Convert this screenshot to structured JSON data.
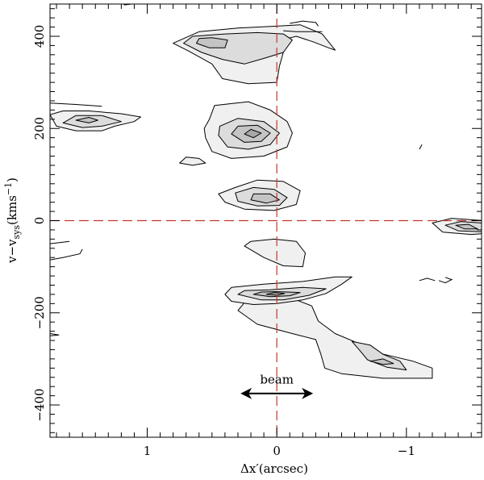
{
  "chart_data": {
    "type": "contour",
    "xlabel": "Δx′(arcsec)",
    "ylabel_parts": {
      "base": "v−v",
      "sub": "sys",
      "units": "(kms",
      "sup": "−1",
      "close": ")"
    },
    "xlim": [
      1.75,
      -1.58
    ],
    "ylim": [
      470,
      -470
    ],
    "x_ticks": [
      1,
      0,
      -1
    ],
    "x_tick_labels": [
      "1",
      "0",
      "−1"
    ],
    "y_ticks": [
      -400,
      -200,
      0,
      200,
      400
    ],
    "y_tick_labels": [
      "−400",
      "−200",
      "0",
      "200",
      "400"
    ],
    "reference_lines": {
      "x": 0,
      "y": 0,
      "color": "#c0392b",
      "style": "dashed"
    },
    "beam": {
      "label": "beam",
      "x_from": 0.28,
      "x_to": -0.28,
      "y": -375
    },
    "contour_levels": 4,
    "fill_colors": [
      "#f0f0f0",
      "#dcdcdc",
      "#c4c4c4",
      "#a8a8a8"
    ],
    "clumps": [
      {
        "name": "stream-upper",
        "level": 1,
        "points": [
          [
            0.3,
            -195
          ],
          [
            0.15,
            -225
          ],
          [
            -0.12,
            -245
          ],
          [
            -0.3,
            -258
          ],
          [
            -0.34,
            -290
          ],
          [
            -0.37,
            -320
          ],
          [
            -0.5,
            -332
          ],
          [
            -0.82,
            -342
          ],
          [
            -1.2,
            -342
          ],
          [
            -1.2,
            -320
          ],
          [
            -1.05,
            -305
          ],
          [
            -0.75,
            -285
          ],
          [
            -0.62,
            -265
          ],
          [
            -0.45,
            -245
          ],
          [
            -0.32,
            -218
          ],
          [
            -0.27,
            -185
          ],
          [
            -0.15,
            -172
          ],
          [
            0.05,
            -172
          ],
          [
            0.25,
            -178
          ]
        ]
      },
      {
        "name": "stream-upper",
        "level": 2,
        "points": [
          [
            -0.58,
            -262
          ],
          [
            -0.65,
            -285
          ],
          [
            -0.7,
            -302
          ],
          [
            -0.85,
            -318
          ],
          [
            -1.0,
            -324
          ],
          [
            -0.95,
            -305
          ],
          [
            -0.82,
            -290
          ],
          [
            -0.72,
            -270
          ]
        ]
      },
      {
        "name": "stream-upper",
        "level": 3,
        "points": [
          [
            -0.72,
            -305
          ],
          [
            -0.82,
            -312
          ],
          [
            -0.9,
            -310
          ],
          [
            -0.82,
            -300
          ]
        ]
      },
      {
        "name": "clump-a",
        "level": 1,
        "points": [
          [
            0.4,
            -160
          ],
          [
            0.35,
            -175
          ],
          [
            0.18,
            -182
          ],
          [
            0.0,
            -180
          ],
          [
            -0.2,
            -172
          ],
          [
            -0.38,
            -158
          ],
          [
            -0.5,
            -138
          ],
          [
            -0.58,
            -122
          ],
          [
            -0.45,
            -122
          ],
          [
            -0.2,
            -132
          ],
          [
            0.1,
            -138
          ],
          [
            0.35,
            -145
          ]
        ]
      },
      {
        "name": "clump-a",
        "level": 2,
        "points": [
          [
            0.3,
            -160
          ],
          [
            0.12,
            -172
          ],
          [
            -0.05,
            -172
          ],
          [
            -0.25,
            -162
          ],
          [
            -0.38,
            -148
          ],
          [
            -0.2,
            -145
          ],
          [
            0.05,
            -150
          ],
          [
            0.25,
            -152
          ]
        ]
      },
      {
        "name": "clump-a",
        "level": 3,
        "points": [
          [
            0.18,
            -160
          ],
          [
            0.05,
            -165
          ],
          [
            -0.1,
            -163
          ],
          [
            -0.18,
            -156
          ],
          [
            0.0,
            -154
          ],
          [
            0.12,
            -155
          ]
        ]
      },
      {
        "name": "clump-a",
        "level": 4,
        "points": [
          [
            0.08,
            -160
          ],
          [
            0.0,
            -162
          ],
          [
            -0.06,
            -158
          ],
          [
            0.02,
            -156
          ]
        ]
      },
      {
        "name": "clump-b",
        "level": 1,
        "points": [
          [
            0.25,
            -55
          ],
          [
            0.1,
            -80
          ],
          [
            -0.05,
            -98
          ],
          [
            -0.2,
            -100
          ],
          [
            -0.22,
            -70
          ],
          [
            -0.15,
            -45
          ],
          [
            0.02,
            -40
          ],
          [
            0.2,
            -45
          ]
        ]
      },
      {
        "name": "clump-c",
        "level": 1,
        "points": [
          [
            0.4,
            40
          ],
          [
            0.25,
            25
          ],
          [
            0.02,
            22
          ],
          [
            -0.15,
            35
          ],
          [
            -0.18,
            65
          ],
          [
            -0.05,
            85
          ],
          [
            0.15,
            88
          ],
          [
            0.32,
            72
          ],
          [
            0.45,
            58
          ]
        ]
      },
      {
        "name": "clump-c",
        "level": 2,
        "points": [
          [
            0.3,
            42
          ],
          [
            0.15,
            32
          ],
          [
            -0.02,
            33
          ],
          [
            -0.08,
            50
          ],
          [
            0.02,
            68
          ],
          [
            0.18,
            72
          ],
          [
            0.32,
            60
          ]
        ]
      },
      {
        "name": "clump-c",
        "level": 3,
        "points": [
          [
            0.2,
            45
          ],
          [
            0.08,
            38
          ],
          [
            -0.02,
            45
          ],
          [
            0.05,
            58
          ],
          [
            0.18,
            58
          ]
        ]
      },
      {
        "name": "clump-e",
        "level": 1,
        "points": [
          [
            0.55,
            180
          ],
          [
            0.5,
            150
          ],
          [
            0.35,
            135
          ],
          [
            0.1,
            140
          ],
          [
            -0.08,
            160
          ],
          [
            -0.12,
            190
          ],
          [
            -0.08,
            215
          ],
          [
            0.05,
            240
          ],
          [
            0.22,
            258
          ],
          [
            0.48,
            250
          ],
          [
            0.52,
            220
          ],
          [
            0.56,
            200
          ]
        ]
      },
      {
        "name": "clump-e",
        "level": 2,
        "points": [
          [
            0.45,
            185
          ],
          [
            0.38,
            160
          ],
          [
            0.22,
            155
          ],
          [
            0.05,
            165
          ],
          [
            -0.02,
            190
          ],
          [
            0.1,
            215
          ],
          [
            0.3,
            222
          ],
          [
            0.44,
            205
          ]
        ]
      },
      {
        "name": "clump-e",
        "level": 3,
        "points": [
          [
            0.35,
            188
          ],
          [
            0.25,
            170
          ],
          [
            0.12,
            172
          ],
          [
            0.05,
            190
          ],
          [
            0.15,
            207
          ],
          [
            0.3,
            205
          ]
        ]
      },
      {
        "name": "clump-e",
        "level": 4,
        "points": [
          [
            0.25,
            188
          ],
          [
            0.18,
            180
          ],
          [
            0.12,
            190
          ],
          [
            0.2,
            198
          ]
        ]
      },
      {
        "name": "clump-f",
        "level": 1,
        "points": [
          [
            0.8,
            385
          ],
          [
            0.68,
            368
          ],
          [
            0.5,
            340
          ],
          [
            0.42,
            308
          ],
          [
            0.22,
            297
          ],
          [
            0.0,
            300
          ],
          [
            -0.02,
            335
          ],
          [
            -0.08,
            395
          ],
          [
            -0.15,
            400
          ],
          [
            -0.28,
            388
          ],
          [
            -0.4,
            375
          ],
          [
            -0.45,
            370
          ],
          [
            -0.35,
            405
          ],
          [
            -0.18,
            425
          ],
          [
            0.0,
            422
          ],
          [
            0.3,
            418
          ],
          [
            0.6,
            410
          ]
        ]
      },
      {
        "name": "clump-f",
        "level": 2,
        "points": [
          [
            0.72,
            385
          ],
          [
            0.58,
            365
          ],
          [
            0.42,
            350
          ],
          [
            0.25,
            340
          ],
          [
            0.1,
            352
          ],
          [
            -0.05,
            365
          ],
          [
            -0.12,
            392
          ],
          [
            -0.05,
            405
          ],
          [
            0.15,
            408
          ],
          [
            0.4,
            405
          ],
          [
            0.65,
            400
          ]
        ]
      },
      {
        "name": "clump-f",
        "level": 3,
        "points": [
          [
            0.62,
            385
          ],
          [
            0.52,
            375
          ],
          [
            0.4,
            375
          ],
          [
            0.38,
            392
          ],
          [
            0.5,
            397
          ],
          [
            0.6,
            395
          ]
        ]
      },
      {
        "name": "clump-g",
        "level": 1,
        "points": [
          [
            1.7,
            205
          ],
          [
            1.55,
            195
          ],
          [
            1.35,
            195
          ],
          [
            1.25,
            205
          ],
          [
            1.1,
            215
          ],
          [
            1.05,
            225
          ],
          [
            1.2,
            232
          ],
          [
            1.45,
            238
          ],
          [
            1.65,
            238
          ],
          [
            1.75,
            230
          ]
        ]
      },
      {
        "name": "clump-g",
        "level": 2,
        "points": [
          [
            1.65,
            212
          ],
          [
            1.5,
            202
          ],
          [
            1.35,
            205
          ],
          [
            1.2,
            215
          ],
          [
            1.35,
            228
          ],
          [
            1.55,
            228
          ]
        ]
      },
      {
        "name": "clump-g",
        "level": 3,
        "points": [
          [
            1.55,
            218
          ],
          [
            1.45,
            212
          ],
          [
            1.38,
            218
          ],
          [
            1.45,
            224
          ]
        ]
      },
      {
        "name": "clump-h",
        "level": 1,
        "points": [
          [
            -1.2,
            -5
          ],
          [
            -1.28,
            -25
          ],
          [
            -1.5,
            -30
          ],
          [
            -1.6,
            -28
          ],
          [
            -1.6,
            0
          ],
          [
            -1.35,
            5
          ]
        ]
      },
      {
        "name": "clump-h",
        "level": 2,
        "points": [
          [
            -1.3,
            -10
          ],
          [
            -1.4,
            -22
          ],
          [
            -1.58,
            -24
          ],
          [
            -1.58,
            -5
          ],
          [
            -1.42,
            -2
          ]
        ]
      },
      {
        "name": "clump-h",
        "level": 3,
        "points": [
          [
            -1.38,
            -10
          ],
          [
            -1.45,
            -18
          ],
          [
            -1.55,
            -18
          ],
          [
            -1.48,
            -8
          ]
        ]
      },
      {
        "name": "clump-i",
        "level": 1,
        "points": [
          [
            0.75,
            125
          ],
          [
            0.65,
            120
          ],
          [
            0.55,
            125
          ],
          [
            0.6,
            135
          ],
          [
            0.7,
            138
          ]
        ]
      }
    ],
    "open_contours": [
      {
        "name": "edge-left-top",
        "points": [
          [
            1.75,
            -245
          ],
          [
            1.68,
            -248
          ],
          [
            1.75,
            -250
          ]
        ]
      },
      {
        "name": "edge-left-mid",
        "points": [
          [
            1.75,
            -85
          ],
          [
            1.65,
            -80
          ],
          [
            1.52,
            -72
          ],
          [
            1.5,
            -62
          ]
        ]
      },
      {
        "name": "edge-left-mid2",
        "points": [
          [
            1.75,
            -50
          ],
          [
            1.6,
            -45
          ]
        ]
      },
      {
        "name": "edge-left-low",
        "points": [
          [
            1.75,
            255
          ],
          [
            1.55,
            252
          ],
          [
            1.35,
            248
          ]
        ]
      },
      {
        "name": "speck-right-1",
        "points": [
          [
            -1.1,
            -130
          ],
          [
            -1.16,
            -125
          ],
          [
            -1.22,
            -130
          ]
        ]
      },
      {
        "name": "speck-right-2",
        "points": [
          [
            -1.25,
            -130
          ],
          [
            -1.3,
            -135
          ],
          [
            -1.35,
            -128
          ],
          [
            -1.3,
            -123
          ]
        ]
      },
      {
        "name": "speck-right-3",
        "points": [
          [
            -1.1,
            155
          ],
          [
            -1.12,
            165
          ]
        ]
      },
      {
        "name": "speck-low-1",
        "points": [
          [
            -0.05,
            412
          ],
          [
            -0.15,
            410
          ],
          [
            -0.35,
            410
          ]
        ]
      },
      {
        "name": "speck-low-2",
        "points": [
          [
            -0.1,
            428
          ],
          [
            -0.2,
            433
          ],
          [
            -0.3,
            430
          ],
          [
            -0.32,
            422
          ]
        ]
      },
      {
        "name": "speck-bottom",
        "points": [
          [
            1.12,
            470
          ],
          [
            1.18,
            468
          ]
        ]
      }
    ]
  }
}
